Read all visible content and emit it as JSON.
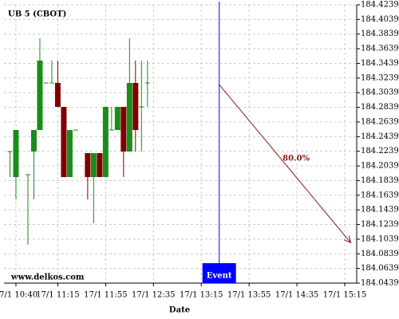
{
  "chart_data": {
    "type": "candlestick",
    "title": "UB 5 (CBOT)",
    "source": "www.delkos.com",
    "x_label": "Date",
    "xlim": [
      "17/1 10:30",
      "17/1 15:25"
    ],
    "xticks": [
      "17/1 10:40",
      "17/1 11:15",
      "17/1 11:55",
      "17/1 12:35",
      "17/1 13:15",
      "17/1 13:55",
      "17/1 14:35",
      "17/1 15:15"
    ],
    "ylim": [
      184.0439,
      184.4239
    ],
    "yticks": [
      184.0439,
      184.0639,
      184.0839,
      184.1039,
      184.1239,
      184.1439,
      184.1639,
      184.1839,
      184.2039,
      184.2239,
      184.2439,
      184.2639,
      184.2839,
      184.3039,
      184.3239,
      184.3439,
      184.3639,
      184.3839,
      184.4039,
      184.4239
    ],
    "grid": true,
    "up_color": "#1a8c1a",
    "down_color": "#800000",
    "x": [
      "17/1 10:35",
      "17/1 10:40",
      "17/1 10:50",
      "17/1 10:55",
      "17/1 11:00",
      "17/1 11:05",
      "17/1 11:10",
      "17/1 11:15",
      "17/1 11:20",
      "17/1 11:25",
      "17/1 11:30",
      "17/1 11:40",
      "17/1 11:45",
      "17/1 11:50",
      "17/1 11:55",
      "17/1 12:00",
      "17/1 12:05",
      "17/1 12:10",
      "17/1 12:15",
      "17/1 12:20",
      "17/1 12:25",
      "17/1 12:30"
    ],
    "open": [
      184.2235,
      184.1887,
      184.192,
      184.2235,
      184.2529,
      184.3172,
      184.3172,
      184.3172,
      184.2845,
      184.1887,
      184.2529,
      184.2214,
      184.1887,
      184.2214,
      184.1887,
      184.2529,
      184.2529,
      184.2845,
      184.2235,
      184.3172,
      184.2845,
      184.3172
    ],
    "high": [
      184.2235,
      184.2529,
      184.192,
      184.2529,
      184.3782,
      184.3172,
      184.3477,
      184.3477,
      184.2845,
      184.2529,
      184.2529,
      184.2214,
      184.2214,
      184.2214,
      184.2845,
      184.2845,
      184.2845,
      184.2845,
      184.3782,
      184.3477,
      184.3477,
      184.3477
    ],
    "low": [
      184.1887,
      184.1582,
      184.0962,
      184.1582,
      184.2529,
      184.3172,
      184.3172,
      184.2845,
      184.1887,
      184.1887,
      184.2529,
      184.1582,
      184.1256,
      184.1887,
      184.1887,
      184.2529,
      184.2529,
      184.1887,
      184.2235,
      184.2235,
      184.2235,
      184.2845
    ],
    "close": [
      184.2235,
      184.2529,
      184.192,
      184.2529,
      184.3477,
      184.3172,
      184.3172,
      184.2845,
      184.1887,
      184.2529,
      184.2529,
      184.1887,
      184.2214,
      184.1887,
      184.2845,
      184.2529,
      184.2845,
      184.2235,
      184.3172,
      184.2529,
      184.2845,
      184.3172
    ],
    "event": {
      "label": "Event",
      "x": "17/1 13:30",
      "color": "#0000ff"
    },
    "projection": {
      "label": "80.0%",
      "color": "#8b1a1a",
      "x": [
        "17/1 13:30",
        "17/1 15:20"
      ],
      "values": [
        184.315,
        184.099
      ]
    }
  }
}
